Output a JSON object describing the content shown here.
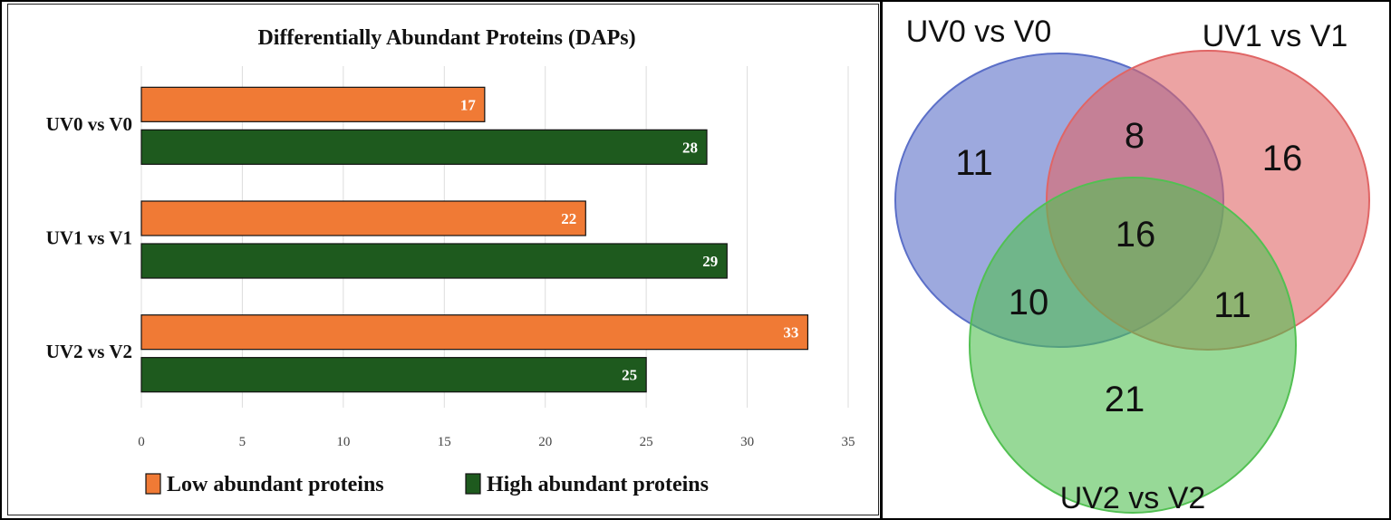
{
  "chart_data": [
    {
      "type": "bar",
      "orientation": "horizontal",
      "title": "Differentially Abundant Proteins (DAPs)",
      "categories": [
        "UV0 vs V0",
        "UV1 vs V1",
        "UV2 vs V2"
      ],
      "series": [
        {
          "name": "Low abundant proteins",
          "values": [
            17,
            22,
            33
          ],
          "color": "#f07a35"
        },
        {
          "name": "High abundant proteins",
          "values": [
            28,
            29,
            25
          ],
          "color": "#1e5a1e"
        }
      ],
      "xlim": [
        0,
        35
      ],
      "xticks": [
        0,
        5,
        10,
        15,
        20,
        25,
        30,
        35
      ],
      "xlabel": "",
      "ylabel": "",
      "grid": true,
      "legend": "bottom"
    },
    {
      "type": "venn",
      "sets": [
        {
          "name": "UV0 vs V0",
          "color": "#5b6fc8"
        },
        {
          "name": "UV1 vs V1",
          "color": "#e06565"
        },
        {
          "name": "UV2 vs V2",
          "color": "#52c052"
        }
      ],
      "regions": {
        "only_UV0": 11,
        "only_UV1": 16,
        "only_UV2": 21,
        "UV0_UV1": 8,
        "UV0_UV2": 10,
        "UV1_UV2": 11,
        "all_three": 16
      }
    }
  ]
}
